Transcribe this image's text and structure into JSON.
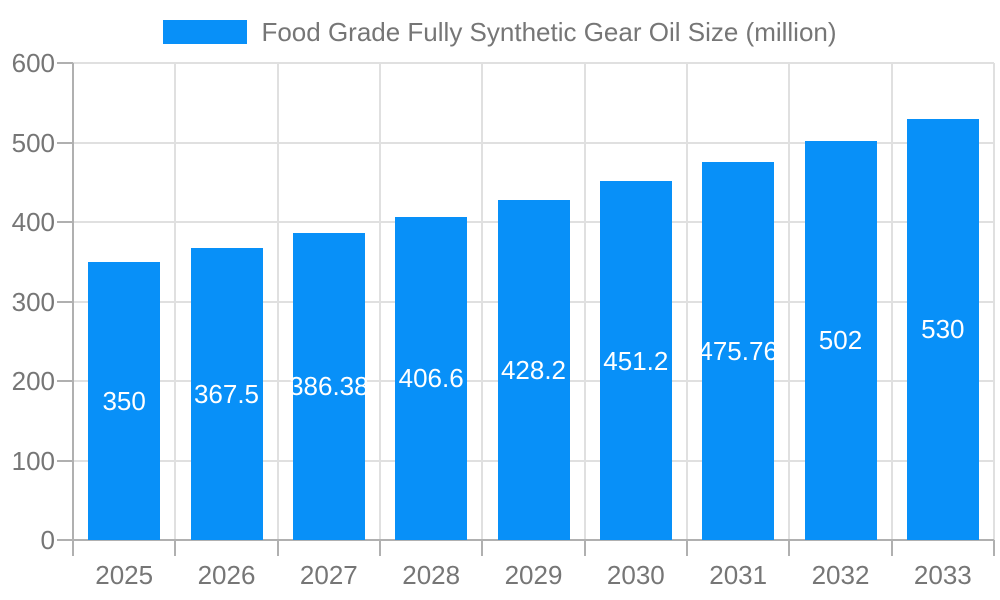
{
  "chart": {
    "legend": {
      "label": "Food Grade Fully Synthetic Gear Oil Size (million)"
    },
    "colors": {
      "bar": "#0890f8",
      "gridline": "#e0e0e0",
      "axis_line": "#b0b0b0",
      "tick_label": "#767676",
      "title": "#767676",
      "value_label": "#ffffff",
      "background": "#ffffff"
    }
  },
  "chart_data": {
    "type": "bar",
    "title": "Food Grade Fully Synthetic Gear Oil Size (million)",
    "categories": [
      "2025",
      "2026",
      "2027",
      "2028",
      "2029",
      "2030",
      "2031",
      "2032",
      "2033"
    ],
    "series": [
      {
        "name": "Food Grade Fully Synthetic Gear Oil Size (million)",
        "values": [
          350,
          367.5,
          386.38,
          406.6,
          428.2,
          451.2,
          475.76,
          502,
          530
        ]
      }
    ],
    "value_labels": [
      "350",
      "367.5",
      "386.38",
      "406.6",
      "428.2",
      "451.2",
      "475.76",
      "502",
      "530"
    ],
    "xlabel": "",
    "ylabel": "",
    "ylim": [
      0,
      600
    ],
    "y_ticks": [
      0,
      100,
      200,
      300,
      400,
      500,
      600
    ],
    "grid": true,
    "legend_position": "top-center",
    "value_label_position": "inside-center"
  }
}
